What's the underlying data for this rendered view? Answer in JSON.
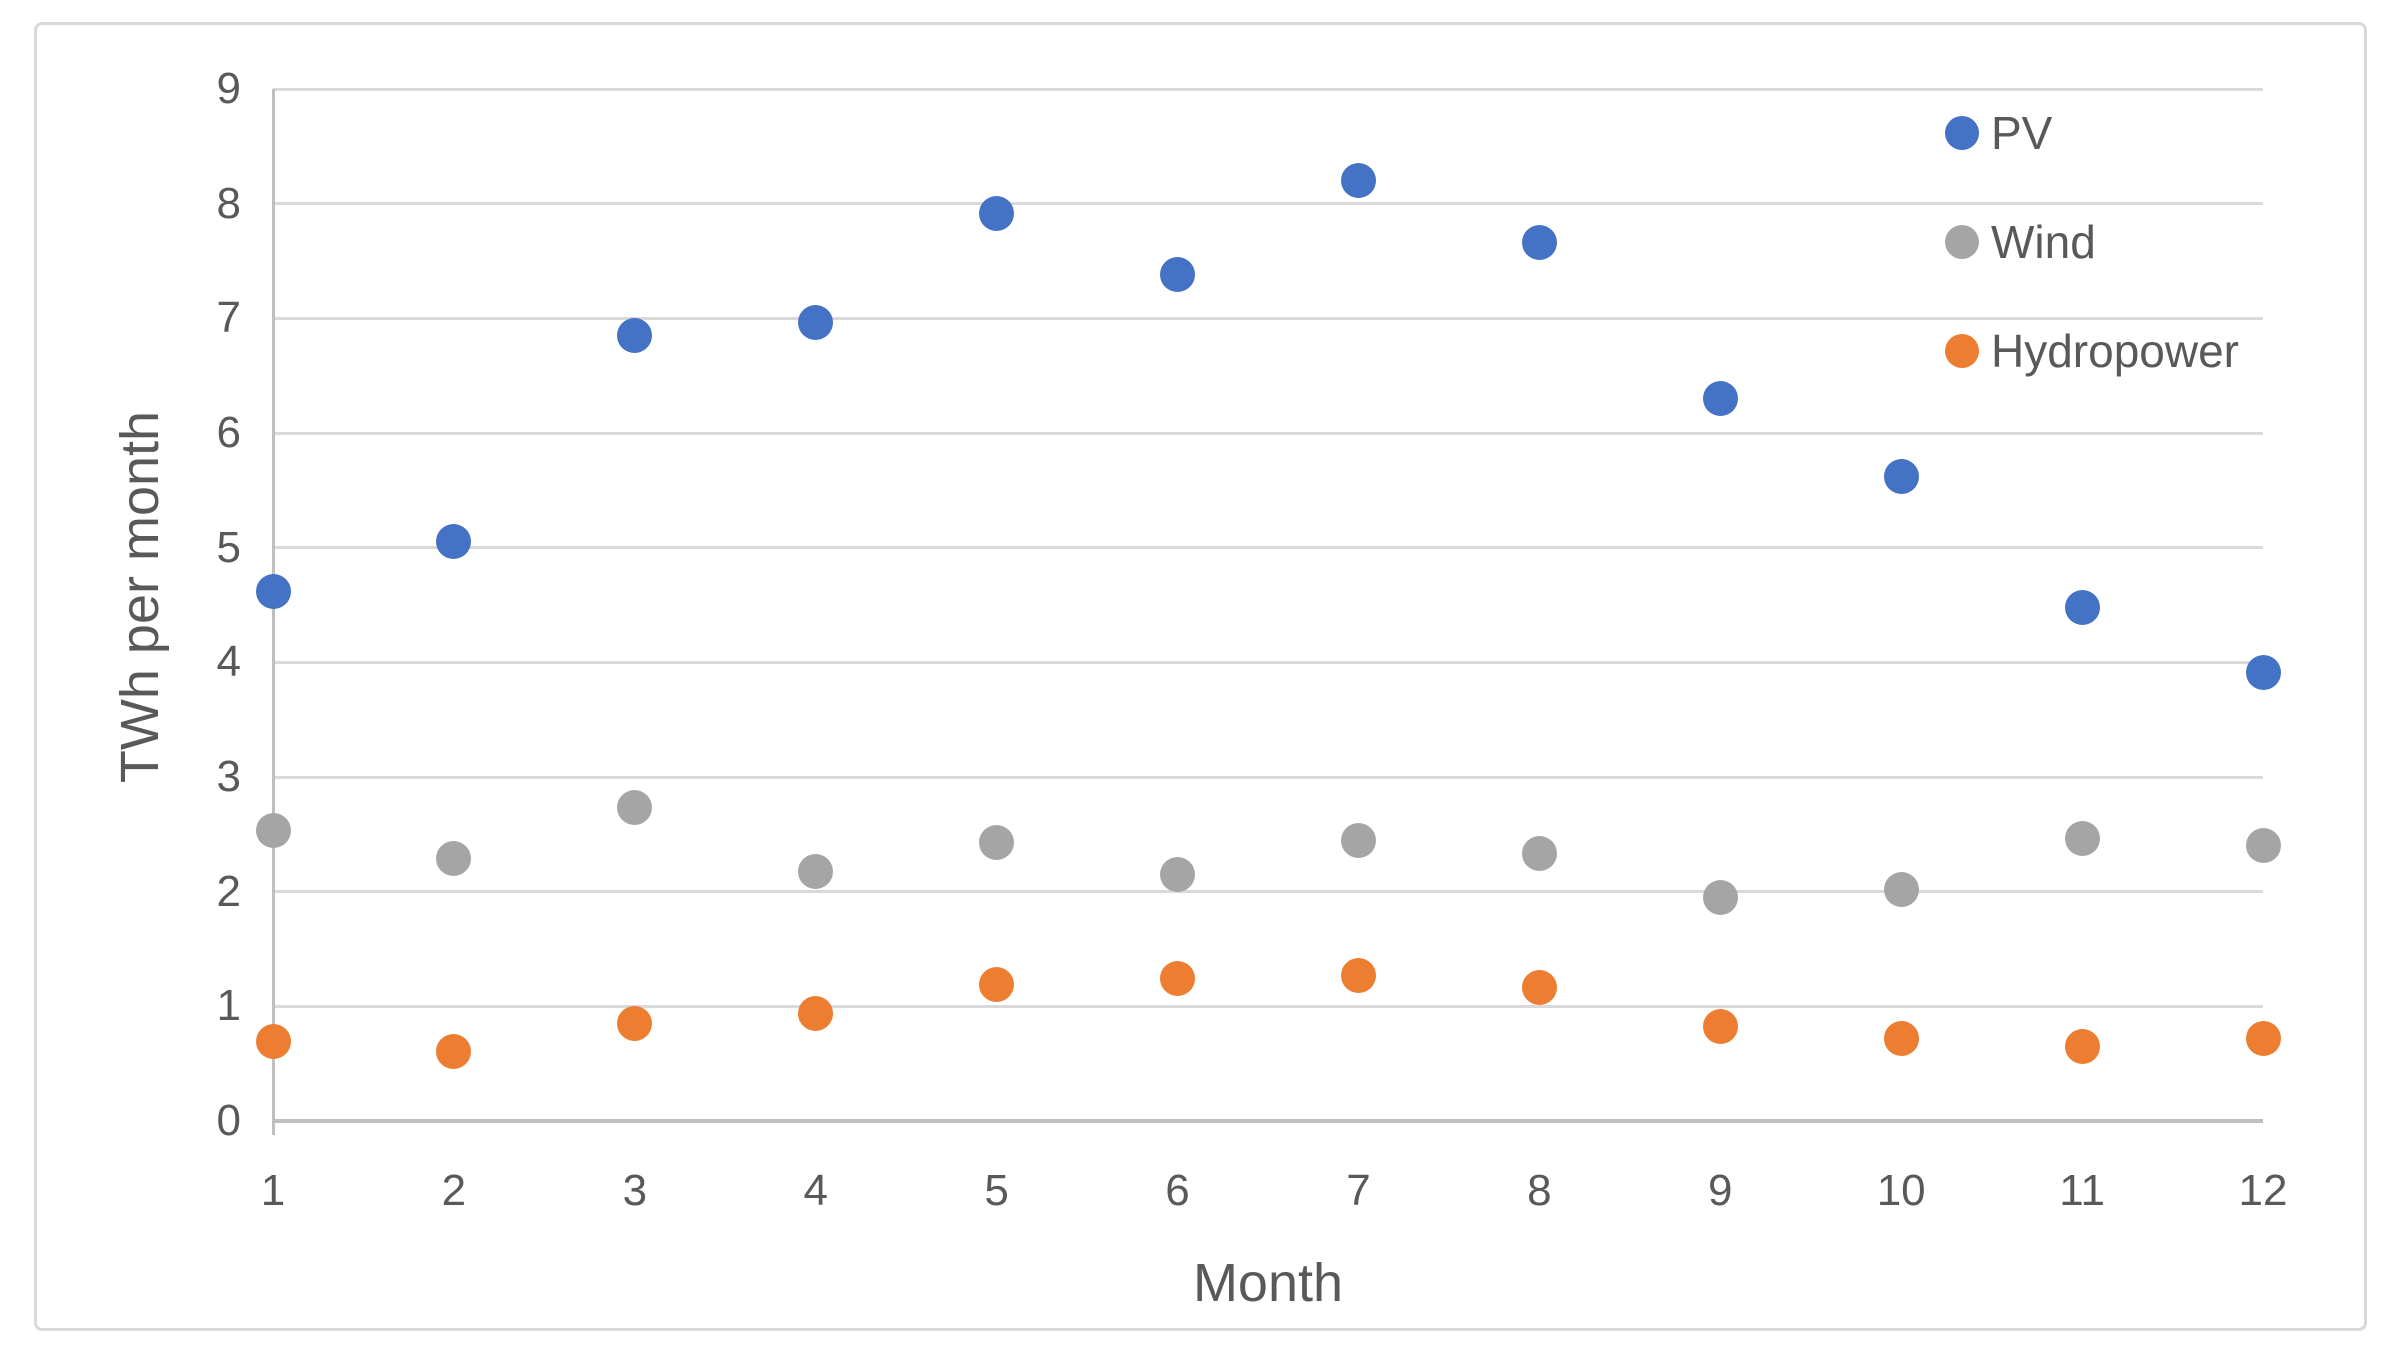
{
  "chart_data": {
    "type": "scatter",
    "title": "",
    "xlabel": "Month",
    "ylabel": "TWh per month",
    "x": [
      1,
      2,
      3,
      4,
      5,
      6,
      7,
      8,
      9,
      10,
      11,
      12
    ],
    "series": [
      {
        "name": "PV",
        "color": "#4472C4",
        "values": [
          4.62,
          5.05,
          6.85,
          6.96,
          7.91,
          7.38,
          8.2,
          7.66,
          6.3,
          5.62,
          4.48,
          3.91
        ]
      },
      {
        "name": "Wind",
        "color": "#A5A5A5",
        "values": [
          2.53,
          2.29,
          2.73,
          2.18,
          2.43,
          2.15,
          2.45,
          2.33,
          1.95,
          2.02,
          2.46,
          2.4
        ]
      },
      {
        "name": "Hydropower",
        "color": "#ED7D31",
        "values": [
          0.69,
          0.61,
          0.85,
          0.94,
          1.19,
          1.24,
          1.27,
          1.16,
          0.82,
          0.72,
          0.65,
          0.72
        ]
      }
    ],
    "xlim": [
      1,
      12
    ],
    "ylim": [
      0,
      9
    ],
    "x_ticks": [
      "1",
      "2",
      "3",
      "4",
      "5",
      "6",
      "7",
      "8",
      "9",
      "10",
      "11",
      "12"
    ],
    "y_ticks": [
      "0",
      "1",
      "2",
      "3",
      "4",
      "5",
      "6",
      "7",
      "8",
      "9"
    ],
    "grid": "horizontal-only",
    "legend_position": "top-right",
    "marker_shape": "circle",
    "gridline_color": "#D9D9D9",
    "axis_color": "#BFBFBF",
    "text_color": "#595959",
    "frame_border_color": "#D9D9D9",
    "background_color": "#FFFFFF"
  }
}
